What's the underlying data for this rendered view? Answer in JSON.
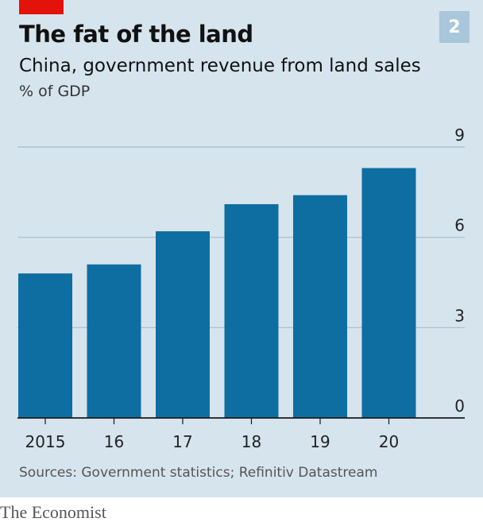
{
  "header": {
    "chart_number": "2",
    "title": "The fat of the land",
    "subtitle": "China, government revenue from land sales",
    "unit": "% of GDP"
  },
  "footer": {
    "source": "Sources: Government statistics; Refinitiv Datastream",
    "brand": "The Economist"
  },
  "colors": {
    "background": "#d6e4ee",
    "bar": "#0e6ea1",
    "gridline": "#a7bccb",
    "axis": "#1a1a1a",
    "accent": "#e3120b"
  },
  "chart_data": {
    "type": "bar",
    "title": "The fat of the land",
    "subtitle": "China, government revenue from land sales",
    "ylabel": "% of GDP",
    "xlabel": "",
    "categories": [
      "2015",
      "16",
      "17",
      "18",
      "19",
      "20"
    ],
    "values": [
      4.8,
      5.1,
      6.2,
      7.1,
      7.4,
      8.3
    ],
    "ylim": [
      0,
      9
    ],
    "yticks": [
      0,
      3,
      6,
      9
    ],
    "ytick_labels": [
      "0",
      "3",
      "6",
      "9"
    ],
    "grid": true,
    "legend": "none"
  }
}
